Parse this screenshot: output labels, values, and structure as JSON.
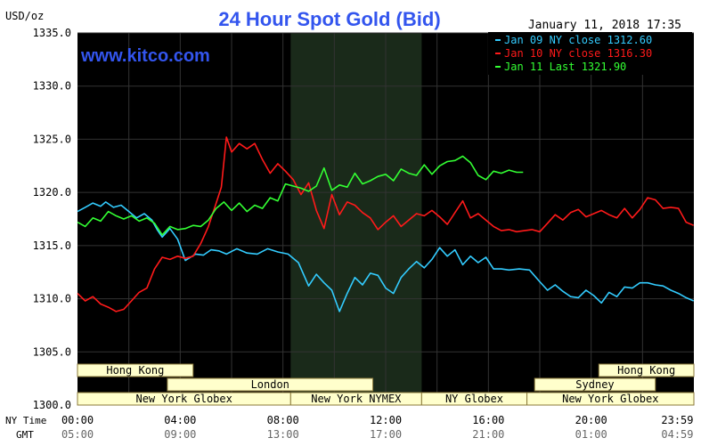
{
  "header": {
    "title": "24 Hour Spot Gold (Bid)",
    "unit": "USD/oz",
    "timestamp": "January 11, 2018 17:35",
    "brand": "www.kitco.com"
  },
  "colors": {
    "background": "#000000",
    "grid": "#333333",
    "axis_text": "#000000",
    "title": "#3355ee",
    "brand": "#3355ee",
    "session_fill": "#ffffcc",
    "session_border": "#8b7a3a",
    "nymex_shade": "#1a2a1a"
  },
  "chart_data": {
    "type": "line",
    "title": "24 Hour Spot Gold (Bid)",
    "ylabel": "USD/oz",
    "ylim": [
      1300,
      1335
    ],
    "yticks": [
      "1335.0",
      "1330.0",
      "1325.0",
      "1320.0",
      "1315.0",
      "1310.0",
      "1305.0",
      "1300.0"
    ],
    "xlim": [
      0,
      24
    ],
    "xticks_ny": [
      "00:00",
      "04:00",
      "08:00",
      "12:00",
      "16:00",
      "20:00",
      "23:59"
    ],
    "xticks_gmt": [
      "05:00",
      "09:00",
      "13:00",
      "17:00",
      "21:00",
      "01:00",
      "04:59"
    ],
    "xrow_labels": [
      "NY Time",
      "GMT"
    ],
    "shaded_region": [
      8.3,
      13.4
    ],
    "sessions": [
      {
        "label": "Hong Kong",
        "start": 0,
        "end": 4.5,
        "row": 0
      },
      {
        "label": "Hong Kong",
        "start": 20.3,
        "end": 24,
        "row": 0
      },
      {
        "label": "London",
        "start": 3.5,
        "end": 11.5,
        "row": 1
      },
      {
        "label": "Sydney",
        "start": 17.8,
        "end": 22.5,
        "row": 1
      },
      {
        "label": "New York Globex",
        "start": 0,
        "end": 8.3,
        "row": 2
      },
      {
        "label": "New York NYMEX",
        "start": 8.3,
        "end": 13.4,
        "row": 2
      },
      {
        "label": "NY Globex",
        "start": 13.4,
        "end": 17.5,
        "row": 2
      },
      {
        "label": "New York Globex",
        "start": 17.5,
        "end": 24,
        "row": 2
      }
    ],
    "series": [
      {
        "name": "Jan 09 NY close 1312.60",
        "color": "#33ccff",
        "x": [
          0,
          0.3,
          0.6,
          0.9,
          1.1,
          1.4,
          1.7,
          2.0,
          2.3,
          2.6,
          2.9,
          3.1,
          3.3,
          3.6,
          3.9,
          4.2,
          4.4,
          4.6,
          4.9,
          5.2,
          5.5,
          5.8,
          6.2,
          6.6,
          7.0,
          7.4,
          7.8,
          8.2,
          8.6,
          9.0,
          9.3,
          9.6,
          9.9,
          10.2,
          10.5,
          10.8,
          11.1,
          11.4,
          11.7,
          12.0,
          12.3,
          12.6,
          12.9,
          13.2,
          13.5,
          13.8,
          14.1,
          14.4,
          14.7,
          15.0,
          15.3,
          15.6,
          15.9,
          16.2,
          16.5,
          16.8,
          17.2,
          17.6,
          18.0,
          18.3,
          18.6,
          18.9,
          19.2,
          19.5,
          19.8,
          20.1,
          20.4,
          20.7,
          21.0,
          21.3,
          21.6,
          21.9,
          22.2,
          22.5,
          22.8,
          23.1,
          23.4,
          23.7,
          23.99
        ],
        "y": [
          1318.2,
          1318.6,
          1319.0,
          1318.7,
          1319.1,
          1318.6,
          1318.8,
          1318.2,
          1317.6,
          1318.0,
          1317.4,
          1316.5,
          1315.8,
          1316.6,
          1315.6,
          1313.6,
          1313.9,
          1314.2,
          1314.1,
          1314.6,
          1314.5,
          1314.2,
          1314.7,
          1314.3,
          1314.2,
          1314.7,
          1314.4,
          1314.2,
          1313.4,
          1311.2,
          1312.3,
          1311.5,
          1310.8,
          1308.8,
          1310.5,
          1312.0,
          1311.3,
          1312.4,
          1312.2,
          1311.0,
          1310.5,
          1312.0,
          1312.8,
          1313.5,
          1312.9,
          1313.7,
          1314.8,
          1314.0,
          1314.6,
          1313.2,
          1314.0,
          1313.4,
          1313.9,
          1312.8,
          1312.8,
          1312.7,
          1312.8,
          1312.7,
          1311.6,
          1310.8,
          1311.3,
          1310.7,
          1310.2,
          1310.1,
          1310.8,
          1310.3,
          1309.6,
          1310.6,
          1310.2,
          1311.1,
          1311.0,
          1311.5,
          1311.5,
          1311.3,
          1311.2,
          1310.8,
          1310.5,
          1310.1,
          1309.8
        ]
      },
      {
        "name": "Jan 10 NY close 1316.30",
        "color": "#ff1a1a",
        "x": [
          0,
          0.3,
          0.6,
          0.9,
          1.2,
          1.5,
          1.8,
          2.1,
          2.4,
          2.7,
          3.0,
          3.3,
          3.6,
          3.9,
          4.2,
          4.5,
          4.8,
          5.1,
          5.4,
          5.6,
          5.8,
          6.0,
          6.3,
          6.6,
          6.9,
          7.2,
          7.5,
          7.8,
          8.1,
          8.4,
          8.7,
          9.0,
          9.3,
          9.6,
          9.9,
          10.2,
          10.5,
          10.8,
          11.1,
          11.4,
          11.7,
          12.0,
          12.3,
          12.6,
          12.9,
          13.2,
          13.5,
          13.8,
          14.1,
          14.4,
          14.7,
          15.0,
          15.3,
          15.6,
          15.9,
          16.2,
          16.5,
          16.8,
          17.1,
          17.4,
          17.7,
          18.0,
          18.3,
          18.6,
          18.9,
          19.2,
          19.5,
          19.8,
          20.1,
          20.4,
          20.7,
          21.0,
          21.3,
          21.6,
          21.9,
          22.2,
          22.5,
          22.8,
          23.1,
          23.4,
          23.7,
          23.99
        ],
        "y": [
          1310.5,
          1309.8,
          1310.2,
          1309.5,
          1309.2,
          1308.8,
          1309.0,
          1309.8,
          1310.6,
          1311.0,
          1312.8,
          1313.9,
          1313.7,
          1314.0,
          1313.8,
          1314.0,
          1315.2,
          1316.8,
          1319.0,
          1320.5,
          1325.2,
          1323.8,
          1324.6,
          1324.1,
          1324.6,
          1323.1,
          1321.8,
          1322.7,
          1322.0,
          1321.2,
          1319.8,
          1320.9,
          1318.3,
          1316.6,
          1319.8,
          1317.9,
          1319.1,
          1318.8,
          1318.1,
          1317.6,
          1316.5,
          1317.2,
          1317.8,
          1316.8,
          1317.4,
          1318.0,
          1317.8,
          1318.3,
          1317.7,
          1317.0,
          1318.1,
          1319.2,
          1317.6,
          1318.0,
          1317.4,
          1316.8,
          1316.4,
          1316.5,
          1316.3,
          1316.4,
          1316.5,
          1316.3,
          1317.1,
          1317.9,
          1317.4,
          1318.1,
          1318.4,
          1317.7,
          1318.0,
          1318.3,
          1317.9,
          1317.6,
          1318.5,
          1317.6,
          1318.4,
          1319.5,
          1319.3,
          1318.5,
          1318.6,
          1318.5,
          1317.2,
          1316.9
        ]
      },
      {
        "name": "Jan 11 Last 1321.90",
        "color": "#33ff33",
        "x": [
          0,
          0.3,
          0.6,
          0.9,
          1.2,
          1.5,
          1.8,
          2.1,
          2.4,
          2.7,
          3.0,
          3.3,
          3.6,
          3.9,
          4.2,
          4.5,
          4.8,
          5.1,
          5.4,
          5.7,
          6.0,
          6.3,
          6.6,
          6.9,
          7.2,
          7.5,
          7.8,
          8.1,
          8.4,
          8.7,
          9.0,
          9.3,
          9.6,
          9.9,
          10.2,
          10.5,
          10.8,
          11.1,
          11.4,
          11.7,
          12.0,
          12.3,
          12.6,
          12.9,
          13.2,
          13.5,
          13.8,
          14.1,
          14.4,
          14.7,
          15.0,
          15.3,
          15.6,
          15.9,
          16.2,
          16.5,
          16.8,
          17.1,
          17.35
        ],
        "y": [
          1317.2,
          1316.8,
          1317.6,
          1317.3,
          1318.2,
          1317.8,
          1317.5,
          1317.8,
          1317.3,
          1317.6,
          1317.1,
          1316.0,
          1316.8,
          1316.5,
          1316.6,
          1316.9,
          1316.8,
          1317.4,
          1318.5,
          1319.1,
          1318.3,
          1319.0,
          1318.2,
          1318.8,
          1318.5,
          1319.5,
          1319.2,
          1320.8,
          1320.6,
          1320.4,
          1320.1,
          1320.6,
          1322.3,
          1320.2,
          1320.7,
          1320.5,
          1321.8,
          1320.8,
          1321.1,
          1321.5,
          1321.7,
          1321.1,
          1322.2,
          1321.8,
          1321.6,
          1322.6,
          1321.7,
          1322.5,
          1322.9,
          1323.0,
          1323.4,
          1322.8,
          1321.6,
          1321.2,
          1322.0,
          1321.8,
          1322.1,
          1321.9,
          1321.9
        ]
      }
    ]
  }
}
